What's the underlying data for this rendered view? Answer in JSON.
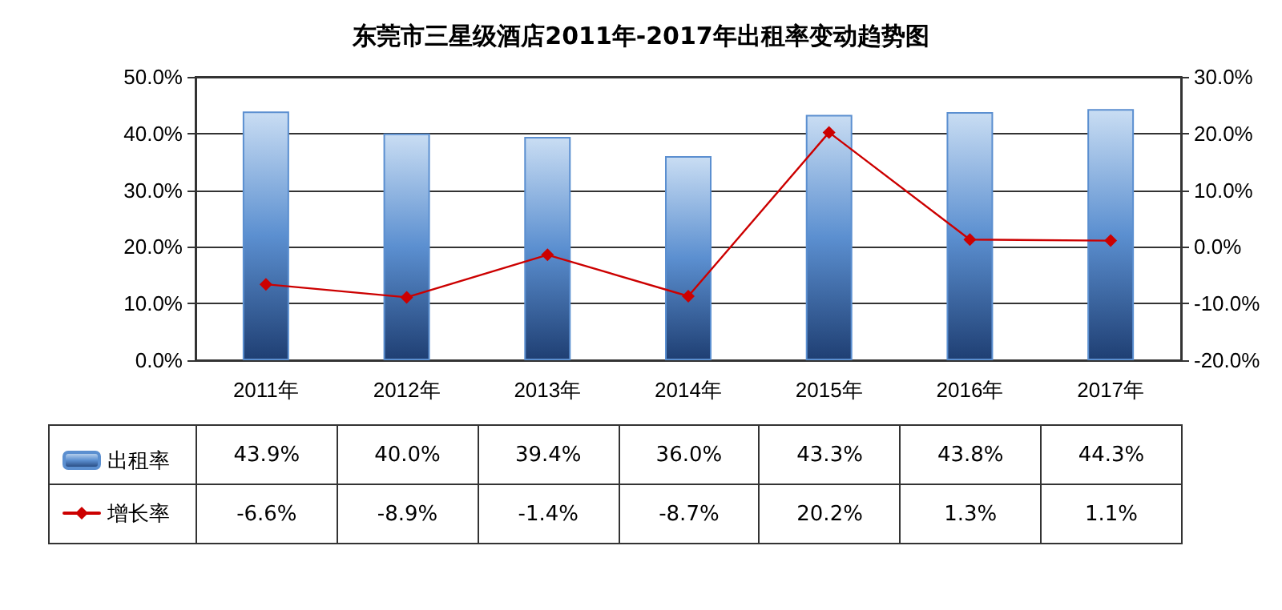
{
  "chart_data": {
    "type": "bar",
    "title": "东莞市三星级酒店2011年-2017年出租率变动趋势图",
    "categories": [
      "2011年",
      "2012年",
      "2013年",
      "2014年",
      "2015年",
      "2016年",
      "2017年"
    ],
    "series": [
      {
        "name": "出租率",
        "color": "#5b8fd0",
        "values": [
          43.9,
          40.0,
          39.4,
          36.0,
          43.3,
          43.8,
          44.3
        ],
        "value_labels": [
          "43.9%",
          "40.0%",
          "39.4%",
          "36.0%",
          "43.3%",
          "43.8%",
          "44.3%"
        ]
      },
      {
        "name": "增长率",
        "type": "line",
        "axis": "y2",
        "color": "#cc0000",
        "marker": "diamond",
        "values": [
          -6.6,
          -8.9,
          -1.4,
          -8.7,
          20.2,
          1.3,
          1.1
        ],
        "value_labels": [
          "-6.6%",
          "-8.9%",
          "-1.4%",
          "-8.7%",
          "20.2%",
          "1.3%",
          "1.1%"
        ]
      }
    ],
    "ylim": [
      0,
      50
    ],
    "yticks": [
      {
        "value": 0,
        "label": "0.0%"
      },
      {
        "value": 10,
        "label": "10.0%"
      },
      {
        "value": 20,
        "label": "20.0%"
      },
      {
        "value": 30,
        "label": "30.0%"
      },
      {
        "value": 40,
        "label": "40.0%"
      },
      {
        "value": 50,
        "label": "50.0%"
      }
    ],
    "y2lim": [
      -20,
      30
    ],
    "y2ticks": [
      {
        "value": -20,
        "label": "-20.0%"
      },
      {
        "value": -10,
        "label": "-10.0%"
      },
      {
        "value": 0,
        "label": "0.0%"
      },
      {
        "value": 10,
        "label": "10.0%"
      },
      {
        "value": 20,
        "label": "20.0%"
      },
      {
        "value": 30,
        "label": "30.0%"
      }
    ],
    "grid": "y",
    "legend": "bottom left"
  }
}
